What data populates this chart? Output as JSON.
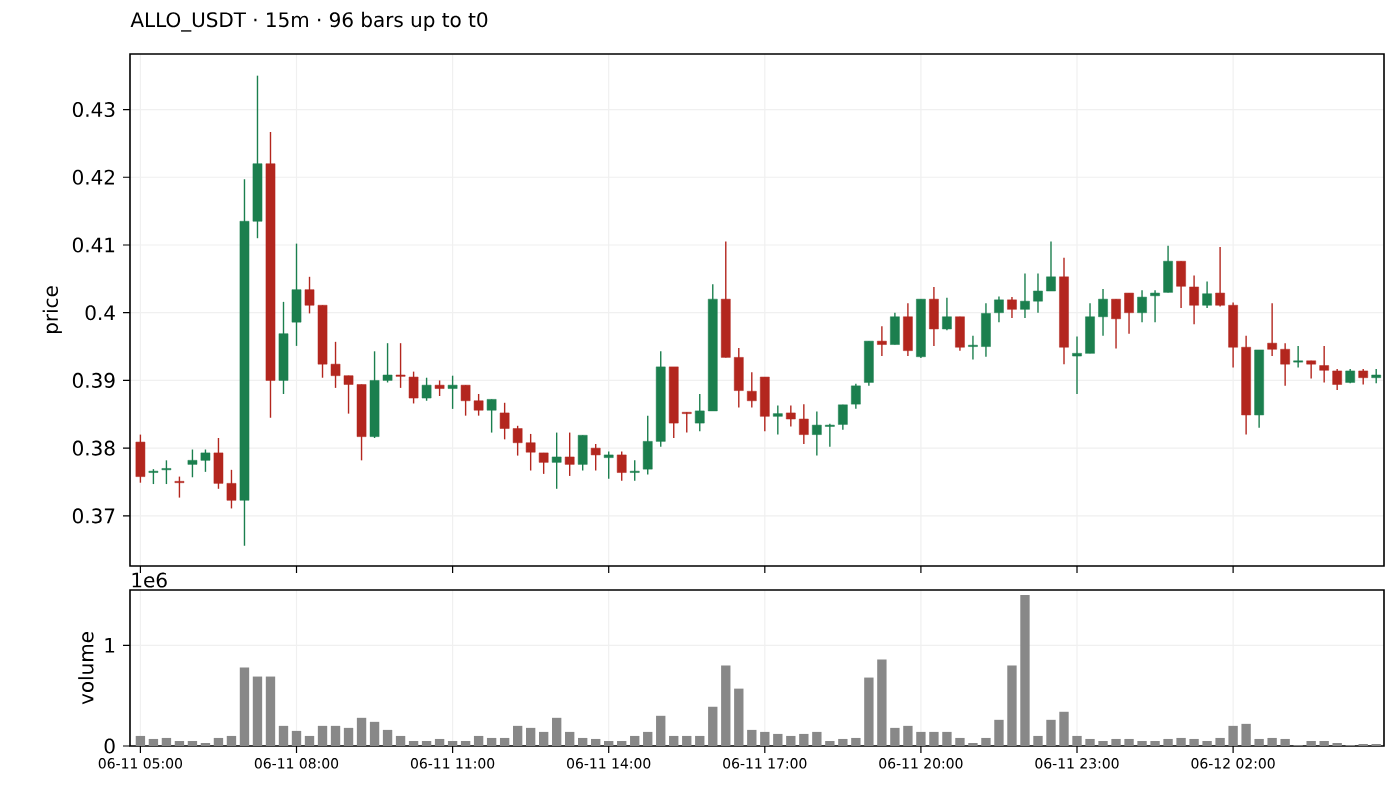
{
  "chart_data": [
    {
      "type": "candlestick",
      "title": "ALLO_USDT  ·  15m  ·  96 bars up to t0",
      "ylabel": "price",
      "categories": [
        null,
        null,
        null,
        null,
        null,
        null,
        null,
        null,
        null,
        null,
        null,
        null,
        null,
        null,
        null,
        null,
        null,
        null,
        null,
        null,
        null,
        null,
        null,
        null,
        null,
        null,
        null,
        null,
        null,
        null,
        null,
        null,
        null,
        null,
        null,
        null,
        null,
        null,
        null,
        null,
        null,
        null,
        null,
        null,
        null,
        null,
        null,
        null,
        null,
        null,
        null,
        null,
        null,
        null,
        null,
        null,
        null,
        null,
        null,
        null,
        null,
        null,
        null,
        null,
        null,
        null,
        null,
        null,
        null,
        null,
        null,
        null,
        null,
        null,
        null,
        null,
        null,
        null,
        null,
        null,
        null,
        null,
        null,
        null,
        null,
        null,
        null,
        null,
        null,
        null,
        null,
        null,
        null,
        null,
        null,
        null
      ],
      "ohlc": [
        [
          0.3809,
          0.382,
          0.3749,
          0.3758
        ],
        [
          0.3764,
          0.3769,
          0.3747,
          0.3766
        ],
        [
          0.3768,
          0.3782,
          0.3747,
          0.377
        ],
        [
          0.3751,
          0.3758,
          0.3727,
          0.3749
        ],
        [
          0.3776,
          0.3798,
          0.3757,
          0.3782
        ],
        [
          0.3782,
          0.3798,
          0.3765,
          0.3793
        ],
        [
          0.3793,
          0.3815,
          0.374,
          0.3748
        ],
        [
          0.3748,
          0.3768,
          0.3711,
          0.3723
        ],
        [
          0.3723,
          0.4197,
          0.3656,
          0.4135
        ],
        [
          0.4135,
          0.435,
          0.411,
          0.422
        ],
        [
          0.422,
          0.4267,
          0.3845,
          0.39
        ],
        [
          0.39,
          0.4016,
          0.388,
          0.3969
        ],
        [
          0.3986,
          0.4102,
          0.3951,
          0.4034
        ],
        [
          0.4034,
          0.4053,
          0.3999,
          0.4011
        ],
        [
          0.4011,
          0.4011,
          0.3904,
          0.3924
        ],
        [
          0.3924,
          0.3957,
          0.3889,
          0.3907
        ],
        [
          0.3907,
          0.3907,
          0.3851,
          0.3894
        ],
        [
          0.3894,
          0.3894,
          0.3782,
          0.3817
        ],
        [
          0.3817,
          0.3943,
          0.3815,
          0.39
        ],
        [
          0.39,
          0.3955,
          0.3897,
          0.3908
        ],
        [
          0.3908,
          0.3955,
          0.3889,
          0.3906
        ],
        [
          0.3905,
          0.3913,
          0.3866,
          0.3874
        ],
        [
          0.3874,
          0.3904,
          0.387,
          0.3893
        ],
        [
          0.3893,
          0.39,
          0.3877,
          0.3888
        ],
        [
          0.3888,
          0.3907,
          0.3858,
          0.3893
        ],
        [
          0.3893,
          0.3893,
          0.3848,
          0.387
        ],
        [
          0.387,
          0.388,
          0.3848,
          0.3856
        ],
        [
          0.3856,
          0.3872,
          0.3823,
          0.3872
        ],
        [
          0.3852,
          0.3867,
          0.3813,
          0.3829
        ],
        [
          0.3829,
          0.3833,
          0.3789,
          0.3808
        ],
        [
          0.3808,
          0.3821,
          0.3767,
          0.3794
        ],
        [
          0.3793,
          0.3793,
          0.3762,
          0.3779
        ],
        [
          0.3779,
          0.3823,
          0.374,
          0.3787
        ],
        [
          0.3787,
          0.3823,
          0.3759,
          0.3776
        ],
        [
          0.3776,
          0.3819,
          0.3767,
          0.3819
        ],
        [
          0.38,
          0.3806,
          0.3767,
          0.379
        ],
        [
          0.3786,
          0.3795,
          0.3755,
          0.379
        ],
        [
          0.379,
          0.3795,
          0.3752,
          0.3764
        ],
        [
          0.3764,
          0.3782,
          0.3752,
          0.3766
        ],
        [
          0.3769,
          0.3848,
          0.3761,
          0.381
        ],
        [
          0.381,
          0.3943,
          0.3802,
          0.392
        ],
        [
          0.392,
          0.392,
          0.3815,
          0.3837
        ],
        [
          0.3853,
          0.3853,
          0.3823,
          0.3851
        ],
        [
          0.3837,
          0.388,
          0.3825,
          0.3855
        ],
        [
          0.3855,
          0.4042,
          0.3855,
          0.402
        ],
        [
          0.402,
          0.4105,
          0.3934,
          0.3934
        ],
        [
          0.3934,
          0.3948,
          0.386,
          0.3885
        ],
        [
          0.3884,
          0.3912,
          0.386,
          0.387
        ],
        [
          0.3905,
          0.3905,
          0.3825,
          0.3847
        ],
        [
          0.3847,
          0.3863,
          0.382,
          0.3851
        ],
        [
          0.3852,
          0.3863,
          0.3832,
          0.3843
        ],
        [
          0.3843,
          0.3865,
          0.3806,
          0.382
        ],
        [
          0.382,
          0.3854,
          0.3789,
          0.3834
        ],
        [
          0.3832,
          0.3836,
          0.3802,
          0.3834
        ],
        [
          0.3835,
          0.3864,
          0.3827,
          0.3864
        ],
        [
          0.3865,
          0.3895,
          0.3858,
          0.3892
        ],
        [
          0.3897,
          0.3958,
          0.3892,
          0.3958
        ],
        [
          0.3958,
          0.398,
          0.3936,
          0.3953
        ],
        [
          0.3953,
          0.4,
          0.3953,
          0.3994
        ],
        [
          0.3994,
          0.4014,
          0.3936,
          0.3944
        ],
        [
          0.3935,
          0.402,
          0.3933,
          0.402
        ],
        [
          0.402,
          0.4038,
          0.3951,
          0.3976
        ],
        [
          0.3976,
          0.4022,
          0.3974,
          0.3994
        ],
        [
          0.3994,
          0.3994,
          0.3944,
          0.3949
        ],
        [
          0.395,
          0.3966,
          0.3931,
          0.3952
        ],
        [
          0.395,
          0.4014,
          0.3935,
          0.3999
        ],
        [
          0.4,
          0.4024,
          0.3986,
          0.4019
        ],
        [
          0.4019,
          0.4023,
          0.3992,
          0.4005
        ],
        [
          0.4005,
          0.4058,
          0.3992,
          0.4017
        ],
        [
          0.4017,
          0.4058,
          0.4,
          0.4032
        ],
        [
          0.4032,
          0.4105,
          0.4032,
          0.4053
        ],
        [
          0.4053,
          0.4081,
          0.3924,
          0.3949
        ],
        [
          0.3936,
          0.3965,
          0.388,
          0.394
        ],
        [
          0.394,
          0.4014,
          0.394,
          0.3994
        ],
        [
          0.3994,
          0.4035,
          0.3966,
          0.402
        ],
        [
          0.402,
          0.402,
          0.3947,
          0.3991
        ],
        [
          0.4029,
          0.4029,
          0.3969,
          0.4
        ],
        [
          0.4,
          0.4033,
          0.3986,
          0.4023
        ],
        [
          0.4025,
          0.4033,
          0.3986,
          0.4029
        ],
        [
          0.403,
          0.4099,
          0.403,
          0.4076
        ],
        [
          0.4076,
          0.4076,
          0.4007,
          0.4039
        ],
        [
          0.4038,
          0.4055,
          0.3983,
          0.4011
        ],
        [
          0.4011,
          0.4046,
          0.4007,
          0.4028
        ],
        [
          0.4029,
          0.4097,
          0.4009,
          0.4011
        ],
        [
          0.4011,
          0.4015,
          0.3919,
          0.3949
        ],
        [
          0.3949,
          0.3966,
          0.382,
          0.3849
        ],
        [
          0.3849,
          0.3945,
          0.383,
          0.3945
        ],
        [
          0.3955,
          0.4014,
          0.3936,
          0.3946
        ],
        [
          0.3946,
          0.3955,
          0.3892,
          0.3924
        ],
        [
          0.3927,
          0.3951,
          0.3919,
          0.3929
        ],
        [
          0.3929,
          0.3929,
          0.3903,
          0.3924
        ],
        [
          0.3922,
          0.3951,
          0.3897,
          0.3915
        ],
        [
          0.3914,
          0.3917,
          0.3886,
          0.3894
        ],
        [
          0.3897,
          0.3917,
          0.3896,
          0.3914
        ],
        [
          0.3914,
          0.3917,
          0.3894,
          0.3904
        ],
        [
          0.3904,
          0.3917,
          0.3896,
          0.3908
        ]
      ],
      "colors": [
        "#b3261e",
        "#1b7f4e",
        "#1b7f4e",
        "#b3261e",
        "#1b7f4e",
        "#1b7f4e",
        "#b3261e",
        "#b3261e",
        "#1b7f4e",
        "#1b7f4e",
        "#b3261e",
        "#1b7f4e",
        "#1b7f4e",
        "#b3261e",
        "#b3261e",
        "#b3261e",
        "#b3261e",
        "#b3261e",
        "#1b7f4e",
        "#1b7f4e",
        "#b3261e",
        "#b3261e",
        "#1b7f4e",
        "#b3261e",
        "#1b7f4e",
        "#b3261e",
        "#b3261e",
        "#1b7f4e",
        "#b3261e",
        "#b3261e",
        "#b3261e",
        "#b3261e",
        "#1b7f4e",
        "#b3261e",
        "#1b7f4e",
        "#b3261e",
        "#1b7f4e",
        "#b3261e",
        "#1b7f4e",
        "#1b7f4e",
        "#1b7f4e",
        "#b3261e",
        "#b3261e",
        "#1b7f4e",
        "#1b7f4e",
        "#b3261e",
        "#b3261e",
        "#b3261e",
        "#b3261e",
        "#1b7f4e",
        "#b3261e",
        "#b3261e",
        "#1b7f4e",
        "#1b7f4e",
        "#1b7f4e",
        "#1b7f4e",
        "#1b7f4e",
        "#b3261e",
        "#1b7f4e",
        "#b3261e",
        "#1b7f4e",
        "#b3261e",
        "#1b7f4e",
        "#b3261e",
        "#1b7f4e",
        "#1b7f4e",
        "#1b7f4e",
        "#b3261e",
        "#1b7f4e",
        "#1b7f4e",
        "#1b7f4e",
        "#b3261e",
        "#1b7f4e",
        "#1b7f4e",
        "#1b7f4e",
        "#b3261e",
        "#b3261e",
        "#1b7f4e",
        "#1b7f4e",
        "#1b7f4e",
        "#b3261e",
        "#b3261e",
        "#1b7f4e",
        "#b3261e",
        "#b3261e",
        "#b3261e",
        "#1b7f4e",
        "#b3261e",
        "#b3261e",
        "#1b7f4e",
        "#b3261e",
        "#b3261e",
        "#b3261e",
        "#1b7f4e",
        "#b3261e",
        "#1b7f4e"
      ],
      "ylim": [
        0.3626,
        0.4382
      ],
      "yticks": [
        0.37,
        0.38,
        0.39,
        0.4,
        0.41,
        0.42,
        0.43
      ],
      "grid": true,
      "tick_labels": "y"
    },
    {
      "type": "bar",
      "ylabel": "volume",
      "annotations": [
        "1e6"
      ],
      "categories": [
        "06-11 05:00",
        null,
        null,
        null,
        null,
        null,
        null,
        null,
        null,
        null,
        null,
        null,
        "06-11 08:00",
        null,
        null,
        null,
        null,
        null,
        null,
        null,
        null,
        null,
        null,
        null,
        "06-11 11:00",
        null,
        null,
        null,
        null,
        null,
        null,
        null,
        null,
        null,
        null,
        null,
        "06-11 14:00",
        null,
        null,
        null,
        null,
        null,
        null,
        null,
        null,
        null,
        null,
        null,
        "06-11 17:00",
        null,
        null,
        null,
        null,
        null,
        null,
        null,
        null,
        null,
        null,
        null,
        "06-11 20:00",
        null,
        null,
        null,
        null,
        null,
        null,
        null,
        null,
        null,
        null,
        null,
        "06-11 23:00",
        null,
        null,
        null,
        null,
        null,
        null,
        null,
        null,
        null,
        null,
        null,
        "06-12 02:00",
        null,
        null,
        null,
        null,
        null,
        null,
        null,
        null,
        null,
        null,
        null
      ],
      "values": [
        0.1,
        0.07,
        0.08,
        0.05,
        0.05,
        0.03,
        0.08,
        0.1,
        0.78,
        0.69,
        0.69,
        0.2,
        0.15,
        0.1,
        0.2,
        0.2,
        0.18,
        0.28,
        0.24,
        0.16,
        0.1,
        0.05,
        0.05,
        0.07,
        0.05,
        0.05,
        0.1,
        0.08,
        0.08,
        0.2,
        0.18,
        0.14,
        0.28,
        0.14,
        0.08,
        0.07,
        0.05,
        0.05,
        0.1,
        0.14,
        0.3,
        0.1,
        0.1,
        0.1,
        0.39,
        0.8,
        0.57,
        0.16,
        0.14,
        0.12,
        0.1,
        0.12,
        0.14,
        0.05,
        0.07,
        0.08,
        0.68,
        0.86,
        0.18,
        0.2,
        0.14,
        0.14,
        0.14,
        0.08,
        0.03,
        0.08,
        0.26,
        0.8,
        1.5,
        0.1,
        0.26,
        0.34,
        0.1,
        0.07,
        0.05,
        0.07,
        0.07,
        0.05,
        0.05,
        0.07,
        0.08,
        0.07,
        0.05,
        0.08,
        0.2,
        0.22,
        0.07,
        0.08,
        0.07,
        0.01,
        0.05,
        0.05,
        0.03,
        0.01,
        0.02,
        0.02
      ],
      "color": "#888888",
      "ylim": [
        0,
        1.55
      ],
      "yticks": [
        0,
        1
      ],
      "grid": true
    }
  ]
}
